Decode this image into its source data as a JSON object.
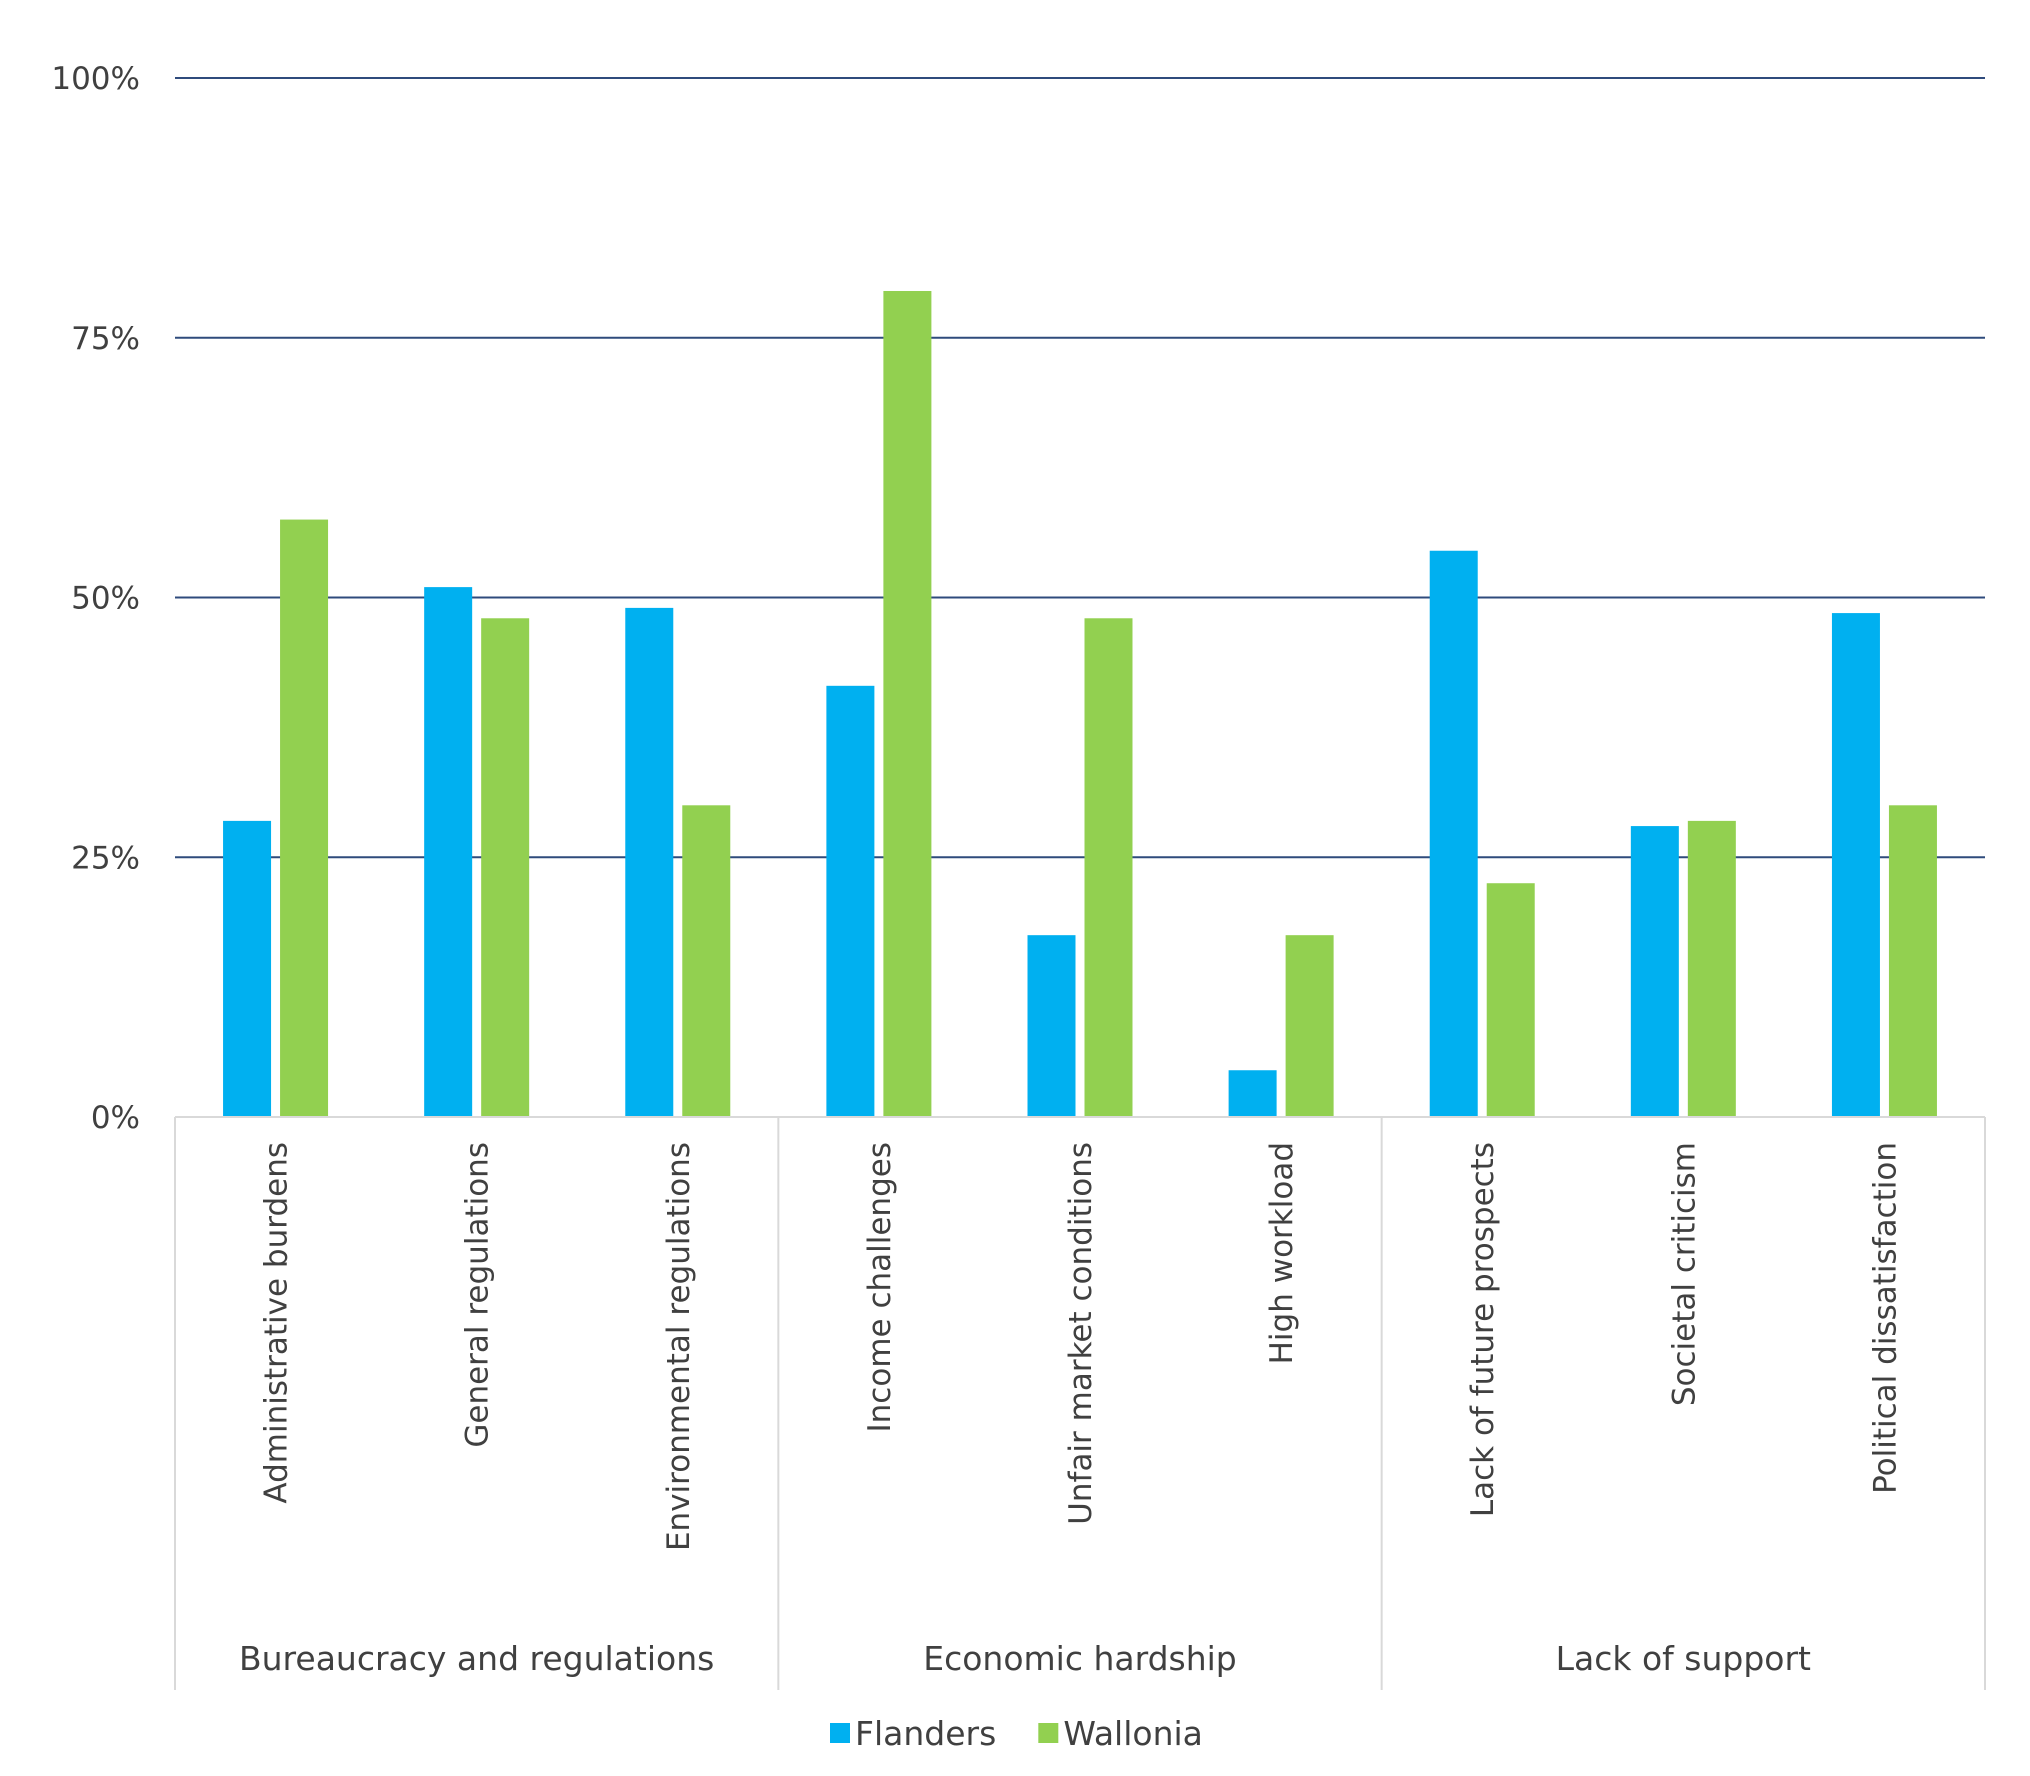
{
  "chart_data": {
    "type": "bar",
    "title": "",
    "xlabel": "",
    "ylabel": "",
    "ylim": [
      0,
      100
    ],
    "y_ticks": [
      "0%",
      "25%",
      "50%",
      "75%",
      "100%"
    ],
    "grid": true,
    "legend_position": "bottom-center",
    "groups": [
      {
        "label": "Bureaucracy and regulations",
        "categories": [
          "Administrative burdens",
          "General regulations",
          "Environmental regulations"
        ]
      },
      {
        "label": "Economic hardship",
        "categories": [
          "Income challenges",
          "Unfair market conditions",
          "High workload"
        ]
      },
      {
        "label": "Lack of support",
        "categories": [
          "Lack of future prospects",
          "Societal criticism",
          "Political dissatisfaction"
        ]
      }
    ],
    "categories": [
      "Administrative burdens",
      "General regulations",
      "Environmental regulations",
      "Income challenges",
      "Unfair market conditions",
      "High workload",
      "Lack of future prospects",
      "Societal criticism",
      "Political dissatisfaction"
    ],
    "series": [
      {
        "name": "Flanders",
        "color": "#00B0F0",
        "values": [
          28.5,
          51,
          49,
          41.5,
          17.5,
          4.5,
          54.5,
          28,
          48.5
        ]
      },
      {
        "name": "Wallonia",
        "color": "#92D050",
        "values": [
          57.5,
          48,
          30,
          79.5,
          48,
          17.5,
          22.5,
          28.5,
          30
        ]
      }
    ]
  }
}
